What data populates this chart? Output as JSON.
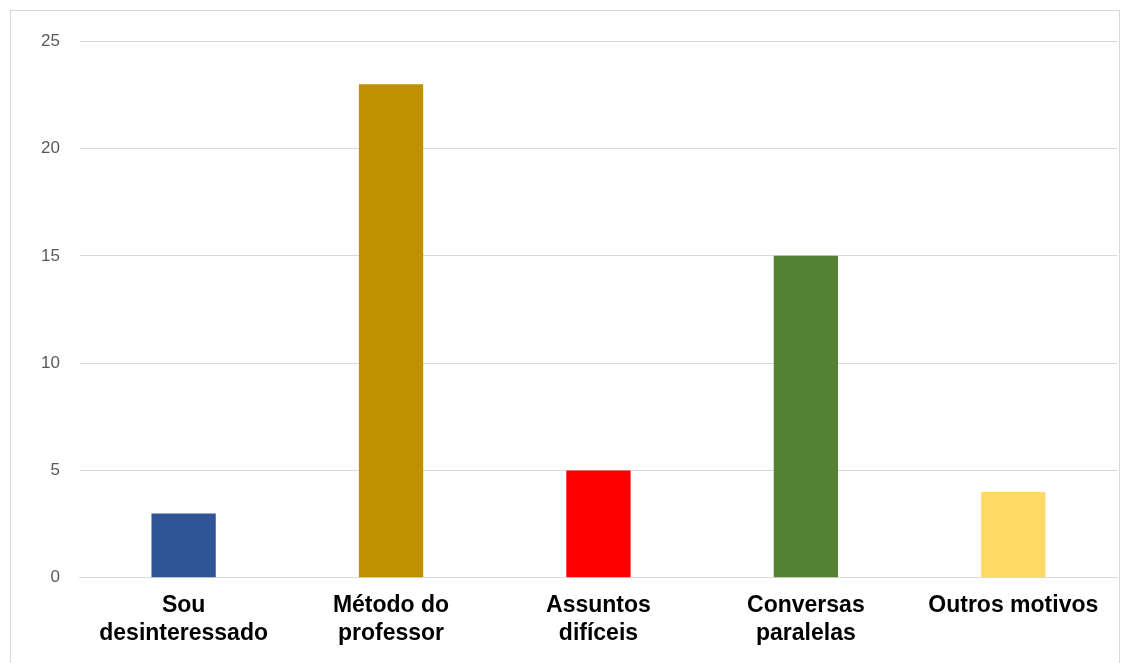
{
  "chart_data": {
    "type": "bar",
    "categories": [
      "Sou desinteressado",
      "Método do professor",
      "Assuntos difíceis",
      "Conversas paralelas",
      "Outros motivos"
    ],
    "values": [
      3,
      23,
      5,
      15,
      4
    ],
    "colors": [
      "#2f5597",
      "#bf9000",
      "#ff0000",
      "#548235",
      "#ffd966"
    ],
    "ylim": [
      0,
      25
    ],
    "yticks": [
      0,
      5,
      10,
      15,
      20,
      25
    ],
    "grid": "y",
    "legend": false
  }
}
